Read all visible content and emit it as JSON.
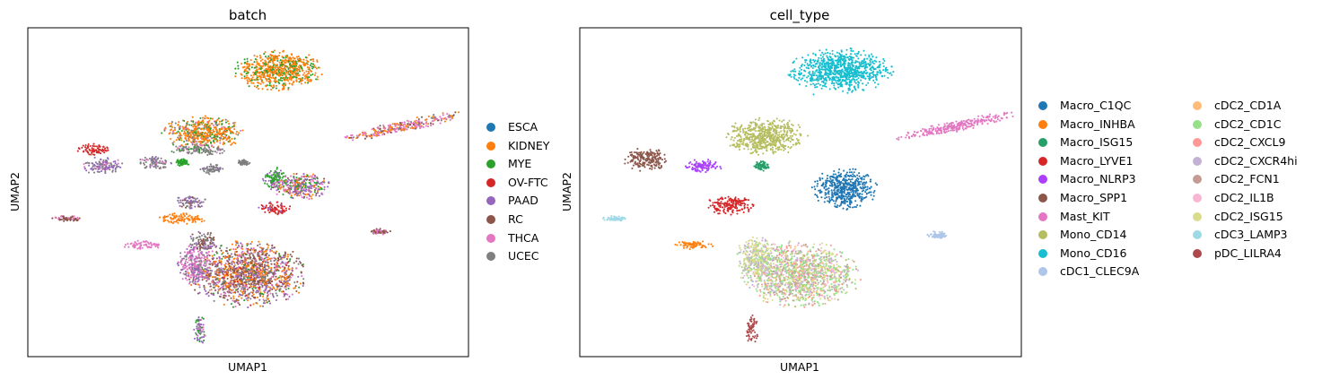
{
  "chart_data": [
    {
      "type": "scatter",
      "title": "batch",
      "xlabel": "UMAP1",
      "ylabel": "UMAP2",
      "xlim": [
        0,
        100
      ],
      "ylim": [
        0,
        100
      ],
      "grid": false,
      "legend_placement": "right",
      "series": [
        {
          "name": "ESCA",
          "color": "#1f77b4"
        },
        {
          "name": "KIDNEY",
          "color": "#ff7f0e"
        },
        {
          "name": "MYE",
          "color": "#2ca02c"
        },
        {
          "name": "OV-FTC",
          "color": "#d62728"
        },
        {
          "name": "PAAD",
          "color": "#9467bd"
        },
        {
          "name": "RC",
          "color": "#8c564b"
        },
        {
          "name": "THCA",
          "color": "#e377c2"
        },
        {
          "name": "UCEC",
          "color": "#7f7f7f"
        }
      ],
      "clusters": [
        {
          "cx": 57,
          "cy": 87,
          "rx": 9.0,
          "ry": 5.5,
          "colors": [
            "#ff7f0e",
            "#2ca02c"
          ],
          "weights": [
            0.72,
            0.28
          ]
        },
        {
          "cx": 40,
          "cy": 68,
          "rx": 8.5,
          "ry": 4.5,
          "colors": [
            "#ff7f0e",
            "#2ca02c",
            "#7f7f7f",
            "#e377c2"
          ],
          "weights": [
            0.62,
            0.2,
            0.12,
            0.06
          ]
        },
        {
          "cx": 39,
          "cy": 63,
          "rx": 6.0,
          "ry": 1.6,
          "colors": [
            "#7f7f7f",
            "#e377c2",
            "#2ca02c"
          ],
          "weights": [
            0.75,
            0.15,
            0.1
          ]
        },
        {
          "cx": 15,
          "cy": 63,
          "rx": 3.4,
          "ry": 1.6,
          "colors": [
            "#d62728"
          ],
          "weights": [
            1.0
          ]
        },
        {
          "cx": 17,
          "cy": 58,
          "rx": 4.0,
          "ry": 2.4,
          "colors": [
            "#9467bd",
            "#7f7f7f",
            "#e377c2"
          ],
          "weights": [
            0.55,
            0.3,
            0.15
          ]
        },
        {
          "cx": 29,
          "cy": 59,
          "rx": 3.6,
          "ry": 1.8,
          "colors": [
            "#7f7f7f",
            "#9467bd",
            "#e377c2"
          ],
          "weights": [
            0.7,
            0.2,
            0.1
          ]
        },
        {
          "cx": 35,
          "cy": 59,
          "rx": 1.6,
          "ry": 1.0,
          "colors": [
            "#2ca02c"
          ],
          "weights": [
            1.0
          ]
        },
        {
          "cx": 42,
          "cy": 57,
          "rx": 2.5,
          "ry": 1.4,
          "colors": [
            "#7f7f7f",
            "#9467bd"
          ],
          "weights": [
            0.8,
            0.2
          ]
        },
        {
          "cx": 49,
          "cy": 59,
          "rx": 1.4,
          "ry": 0.8,
          "colors": [
            "#7f7f7f"
          ],
          "weights": [
            1.0
          ]
        },
        {
          "cx": 56,
          "cy": 54,
          "rx": 2.6,
          "ry": 3.2,
          "colors": [
            "#2ca02c",
            "#9467bd"
          ],
          "weights": [
            0.8,
            0.2
          ]
        },
        {
          "cx": 62,
          "cy": 52,
          "rx": 6.0,
          "ry": 3.8,
          "colors": [
            "#9467bd",
            "#e377c2",
            "#2ca02c",
            "#ff7f0e",
            "#8c564b"
          ],
          "weights": [
            0.35,
            0.25,
            0.15,
            0.15,
            0.1
          ]
        },
        {
          "cx": 56,
          "cy": 45,
          "rx": 3.3,
          "ry": 1.8,
          "colors": [
            "#d62728",
            "#9467bd"
          ],
          "weights": [
            0.85,
            0.15
          ]
        },
        {
          "cx": 37,
          "cy": 47,
          "rx": 3.2,
          "ry": 1.8,
          "colors": [
            "#9467bd",
            "#7f7f7f",
            "#8c564b"
          ],
          "weights": [
            0.5,
            0.3,
            0.2
          ]
        },
        {
          "cx": 35,
          "cy": 42,
          "rx": 5.0,
          "ry": 1.5,
          "colors": [
            "#ff7f0e"
          ],
          "weights": [
            1.0
          ]
        },
        {
          "cx": 9,
          "cy": 42,
          "rx": 3.0,
          "ry": 0.8,
          "colors": [
            "#8c564b",
            "#e377c2"
          ],
          "weights": [
            0.6,
            0.4
          ]
        },
        {
          "cx": 26,
          "cy": 34,
          "rx": 4.0,
          "ry": 1.3,
          "colors": [
            "#e377c2"
          ],
          "weights": [
            1.0
          ]
        },
        {
          "cx": 50,
          "cy": 25,
          "rx": 12.0,
          "ry": 9.0,
          "colors": [
            "#8c564b",
            "#ff7f0e",
            "#7f7f7f",
            "#9467bd",
            "#e377c2",
            "#2ca02c",
            "#d62728"
          ],
          "weights": [
            0.3,
            0.25,
            0.12,
            0.12,
            0.12,
            0.05,
            0.04
          ]
        },
        {
          "cx": 38,
          "cy": 28,
          "rx": 3.5,
          "ry": 6.0,
          "colors": [
            "#e377c2",
            "#9467bd",
            "#7f7f7f"
          ],
          "weights": [
            0.6,
            0.25,
            0.15
          ]
        },
        {
          "cx": 40,
          "cy": 35,
          "rx": 3.0,
          "ry": 3.0,
          "colors": [
            "#7f7f7f",
            "#8c564b",
            "#9467bd"
          ],
          "weights": [
            0.4,
            0.4,
            0.2
          ]
        },
        {
          "cx": 39,
          "cy": 8,
          "rx": 1.2,
          "ry": 4.0,
          "colors": [
            "#9467bd",
            "#2ca02c",
            "#e377c2"
          ],
          "weights": [
            0.5,
            0.3,
            0.2
          ]
        },
        {
          "cx": 85,
          "cy": 70,
          "rx": 13.0,
          "ry": 1.6,
          "rot": -12,
          "colors": [
            "#e377c2",
            "#ff7f0e",
            "#8c564b",
            "#7f7f7f"
          ],
          "weights": [
            0.5,
            0.25,
            0.15,
            0.1
          ]
        },
        {
          "cx": 80,
          "cy": 38,
          "rx": 2.0,
          "ry": 0.8,
          "colors": [
            "#8c564b",
            "#e377c2"
          ],
          "weights": [
            0.6,
            0.4
          ]
        }
      ]
    },
    {
      "type": "scatter",
      "title": "cell_type",
      "xlabel": "UMAP1",
      "ylabel": "UMAP2",
      "xlim": [
        0,
        100
      ],
      "ylim": [
        0,
        100
      ],
      "grid": false,
      "legend_placement": "right",
      "series": [
        {
          "name": "Macro_C1QC",
          "color": "#1f77b4"
        },
        {
          "name": "Macro_INHBA",
          "color": "#ff7f0e"
        },
        {
          "name": "Macro_ISG15",
          "color": "#279e68"
        },
        {
          "name": "Macro_LYVE1",
          "color": "#d62728"
        },
        {
          "name": "Macro_NLRP3",
          "color": "#aa40fc"
        },
        {
          "name": "Macro_SPP1",
          "color": "#8c564b"
        },
        {
          "name": "Mast_KIT",
          "color": "#e377c2"
        },
        {
          "name": "Mono_CD14",
          "color": "#b5bd61"
        },
        {
          "name": "Mono_CD16",
          "color": "#17becf"
        },
        {
          "name": "cDC1_CLEC9A",
          "color": "#aec7e8"
        },
        {
          "name": "cDC2_CD1A",
          "color": "#ffbb78"
        },
        {
          "name": "cDC2_CD1C",
          "color": "#98df8a"
        },
        {
          "name": "cDC2_CXCL9",
          "color": "#ff9896"
        },
        {
          "name": "cDC2_CXCR4hi",
          "color": "#c5b0d5"
        },
        {
          "name": "cDC2_FCN1",
          "color": "#c49c94"
        },
        {
          "name": "cDC2_IL1B",
          "color": "#f7b6d2"
        },
        {
          "name": "cDC2_ISG15",
          "color": "#dbdb8d"
        },
        {
          "name": "cDC3_LAMP3",
          "color": "#9edae5"
        },
        {
          "name": "pDC_LILRA4",
          "color": "#ad494a"
        }
      ],
      "clusters": [
        {
          "cx": 59,
          "cy": 87,
          "rx": 10.5,
          "ry": 6.0,
          "colors": [
            "#17becf"
          ],
          "weights": [
            1.0
          ]
        },
        {
          "cx": 42,
          "cy": 67,
          "rx": 8.5,
          "ry": 5.0,
          "colors": [
            "#b5bd61"
          ],
          "weights": [
            1.0
          ]
        },
        {
          "cx": 15,
          "cy": 60,
          "rx": 4.5,
          "ry": 3.2,
          "colors": [
            "#8c564b"
          ],
          "weights": [
            1.0
          ]
        },
        {
          "cx": 28,
          "cy": 58,
          "rx": 4.0,
          "ry": 1.8,
          "colors": [
            "#aa40fc"
          ],
          "weights": [
            1.0
          ]
        },
        {
          "cx": 41,
          "cy": 58,
          "rx": 1.8,
          "ry": 1.5,
          "colors": [
            "#279e68"
          ],
          "weights": [
            1.0
          ]
        },
        {
          "cx": 60,
          "cy": 51,
          "rx": 6.5,
          "ry": 5.5,
          "colors": [
            "#1f77b4"
          ],
          "weights": [
            1.0
          ]
        },
        {
          "cx": 34,
          "cy": 46,
          "rx": 5.0,
          "ry": 2.5,
          "colors": [
            "#d62728"
          ],
          "weights": [
            1.0
          ]
        },
        {
          "cx": 8,
          "cy": 42,
          "rx": 2.5,
          "ry": 0.8,
          "colors": [
            "#9edae5"
          ],
          "weights": [
            1.0
          ]
        },
        {
          "cx": 26,
          "cy": 34,
          "rx": 4.0,
          "ry": 1.2,
          "colors": [
            "#ff7f0e"
          ],
          "weights": [
            1.0
          ]
        },
        {
          "cx": 50,
          "cy": 25,
          "rx": 12.0,
          "ry": 9.0,
          "colors": [
            "#98df8a",
            "#dbdb8d",
            "#c5b0d5",
            "#c49c94",
            "#f7b6d2",
            "#ff9896",
            "#ffbb78",
            "#b5bd61"
          ],
          "weights": [
            0.3,
            0.2,
            0.15,
            0.12,
            0.08,
            0.07,
            0.05,
            0.03
          ]
        },
        {
          "cx": 40,
          "cy": 30,
          "rx": 4.0,
          "ry": 6.0,
          "colors": [
            "#dbdb8d",
            "#c5b0d5",
            "#98df8a"
          ],
          "weights": [
            0.5,
            0.3,
            0.2
          ]
        },
        {
          "cx": 39,
          "cy": 8,
          "rx": 1.3,
          "ry": 4.0,
          "colors": [
            "#ad494a"
          ],
          "weights": [
            1.0
          ]
        },
        {
          "cx": 85,
          "cy": 70,
          "rx": 13.0,
          "ry": 1.6,
          "rot": -12,
          "colors": [
            "#e377c2"
          ],
          "weights": [
            1.0
          ]
        },
        {
          "cx": 81,
          "cy": 37,
          "rx": 2.2,
          "ry": 1.0,
          "colors": [
            "#aec7e8"
          ],
          "weights": [
            1.0
          ]
        }
      ]
    }
  ]
}
